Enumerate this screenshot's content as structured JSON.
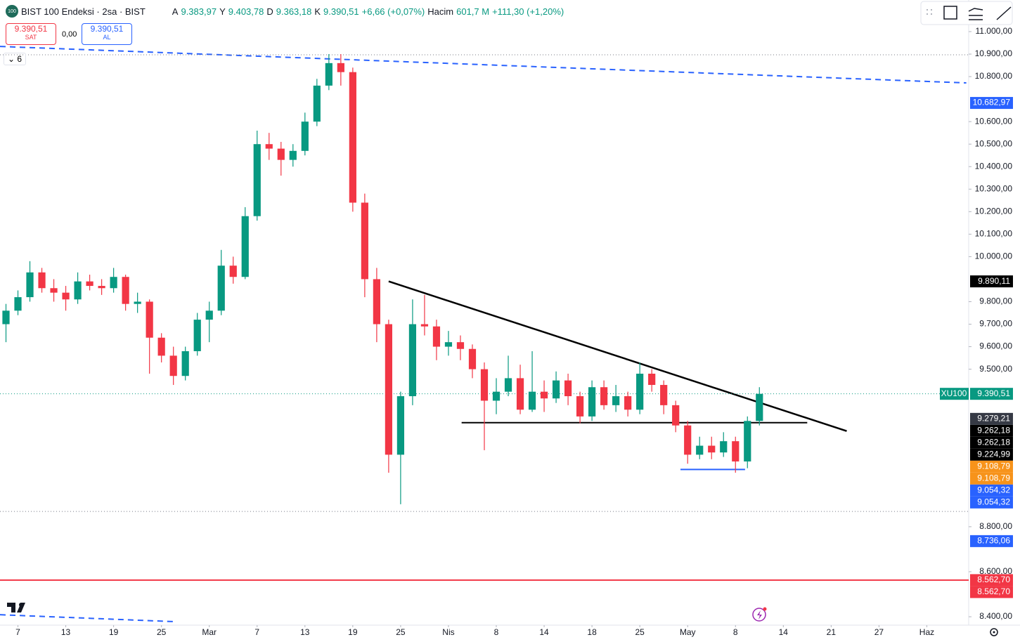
{
  "header": {
    "logo": "100",
    "symbol": "BIST 100 Endeksi · 2sa · BIST",
    "open_label": "A",
    "open": "9.383,97",
    "high_label": "Y",
    "high": "9.403,78",
    "low_label": "D",
    "low": "9.363,18",
    "close_label": "K",
    "close": "9.390,51",
    "change": "+6,66 (+0,07%)",
    "volume_label": "Hacim",
    "volume": "601,7 M",
    "volume_change": "+111,30 (+1,20%)"
  },
  "trade": {
    "sell_price": "9.390,51",
    "sell": "SAT",
    "spread": "0,00",
    "buy_price": "9.390,51",
    "buy": "AL",
    "indicators": "6"
  },
  "chart_data": {
    "type": "candlestick",
    "up_color": "#089981",
    "down_color": "#f23645",
    "grid": false,
    "xlim": [
      -1.5,
      79.5
    ],
    "ylim": [
      8362.7,
      11140.4
    ],
    "xticks": [
      {
        "value": 0,
        "label": "7"
      },
      {
        "value": 4,
        "label": "13"
      },
      {
        "value": 8,
        "label": "19"
      },
      {
        "value": 12,
        "label": "25"
      },
      {
        "value": 16,
        "label": "Mar"
      },
      {
        "value": 20,
        "label": "7"
      },
      {
        "value": 24,
        "label": "13"
      },
      {
        "value": 28,
        "label": "19"
      },
      {
        "value": 32,
        "label": "25"
      },
      {
        "value": 36,
        "label": "Nis"
      },
      {
        "value": 40,
        "label": "8"
      },
      {
        "value": 44,
        "label": "14"
      },
      {
        "value": 48,
        "label": "18"
      },
      {
        "value": 52,
        "label": "25"
      },
      {
        "value": 56,
        "label": "May"
      },
      {
        "value": 60,
        "label": "8"
      },
      {
        "value": 64,
        "label": "14"
      },
      {
        "value": 68,
        "label": "21"
      },
      {
        "value": 72,
        "label": "27"
      },
      {
        "value": 76,
        "label": "Haz"
      }
    ],
    "yticks": [
      {
        "value": 11000,
        "label": "11.000,00"
      },
      {
        "value": 10900,
        "label": "10.900,00"
      },
      {
        "value": 10800,
        "label": "10.800,00"
      },
      {
        "value": 10600,
        "label": "10.600,00"
      },
      {
        "value": 10500,
        "label": "10.500,00"
      },
      {
        "value": 10400,
        "label": "10.400,00"
      },
      {
        "value": 10300,
        "label": "10.300,00"
      },
      {
        "value": 10200,
        "label": "10.200,00"
      },
      {
        "value": 10100,
        "label": "10.100,00"
      },
      {
        "value": 10000,
        "label": "10.000,00"
      },
      {
        "value": 9800,
        "label": "9.800,00"
      },
      {
        "value": 9700,
        "label": "9.700,00"
      },
      {
        "value": 9600,
        "label": "9.600,00"
      },
      {
        "value": 9500,
        "label": "9.500,00"
      },
      {
        "value": 8800,
        "label": "8.800,00"
      },
      {
        "value": 8600,
        "label": "8.600,00"
      },
      {
        "value": 8400,
        "label": "8.400,00"
      }
    ],
    "x": [
      -1,
      0,
      1,
      2,
      3,
      4,
      5,
      6,
      7,
      8,
      9,
      10,
      11,
      12,
      13,
      14,
      15,
      16,
      17,
      18,
      19,
      20,
      21,
      22,
      23,
      24,
      25,
      26,
      27,
      28,
      29,
      30,
      31,
      32,
      33,
      34,
      35,
      36,
      37,
      38,
      39,
      40,
      41,
      42,
      43,
      44,
      45,
      46,
      47,
      48,
      49,
      50,
      51,
      52,
      53,
      54,
      55,
      56,
      57,
      58,
      59,
      60,
      61,
      62
    ],
    "open": [
      9700,
      9760,
      9820,
      9930,
      9860,
      9840,
      9810,
      9890,
      9870,
      9860,
      9910,
      9790,
      9800,
      9640,
      9560,
      9470,
      9580,
      9720,
      9760,
      9960,
      9910,
      10180,
      10500,
      10480,
      10430,
      10470,
      10600,
      10760,
      10860,
      10820,
      10240,
      9900,
      9700,
      9120,
      9380,
      9700,
      9690,
      9600,
      9620,
      9590,
      9500,
      9360,
      9400,
      9460,
      9320,
      9400,
      9370,
      9450,
      9380,
      9290,
      9420,
      9340,
      9380,
      9320,
      9480,
      9430,
      9340,
      9250,
      9120,
      9160,
      9130,
      9180,
      9090,
      9270
    ],
    "high": [
      9790,
      9850,
      9980,
      9950,
      9900,
      9870,
      9930,
      9920,
      9900,
      9950,
      9920,
      9840,
      9810,
      9660,
      9600,
      9600,
      9750,
      9800,
      10030,
      10000,
      10220,
      10560,
      10550,
      10510,
      10500,
      10640,
      10790,
      10900,
      10900,
      10840,
      10280,
      9950,
      9720,
      9400,
      9810,
      9830,
      9720,
      9670,
      9650,
      9610,
      9530,
      9460,
      9560,
      9520,
      9580,
      9450,
      9490,
      9480,
      9400,
      9450,
      9450,
      9430,
      9400,
      9530,
      9500,
      9450,
      9360,
      9270,
      9200,
      9200,
      9220,
      9200,
      9290,
      9420
    ],
    "low": [
      9620,
      9740,
      9800,
      9840,
      9800,
      9760,
      9790,
      9850,
      9830,
      9840,
      9760,
      9750,
      9480,
      9530,
      9430,
      9450,
      9560,
      9620,
      9740,
      9880,
      9900,
      10160,
      10430,
      10360,
      10400,
      10450,
      10580,
      10740,
      10760,
      10200,
      9820,
      9620,
      9040,
      8900,
      9340,
      9650,
      9540,
      9560,
      9540,
      9460,
      9140,
      9300,
      9380,
      9300,
      9310,
      9310,
      9350,
      9340,
      9260,
      9270,
      9320,
      9310,
      9290,
      9300,
      9400,
      9300,
      9220,
      9080,
      9100,
      9100,
      9110,
      9040,
      9060,
      9250
    ],
    "close": [
      9760,
      9820,
      9930,
      9860,
      9840,
      9810,
      9890,
      9870,
      9860,
      9910,
      9790,
      9800,
      9640,
      9560,
      9470,
      9580,
      9720,
      9760,
      9960,
      9910,
      10180,
      10500,
      10480,
      10430,
      10470,
      10600,
      10760,
      10860,
      10820,
      10240,
      9900,
      9700,
      9120,
      9380,
      9700,
      9690,
      9600,
      9620,
      9590,
      9500,
      9360,
      9400,
      9460,
      9320,
      9400,
      9370,
      9450,
      9380,
      9290,
      9420,
      9340,
      9380,
      9320,
      9480,
      9430,
      9340,
      9250,
      9120,
      9160,
      9130,
      9180,
      9090,
      9270,
      9390.51
    ],
    "last_price": {
      "symbol": "XU100",
      "value": 9390.51,
      "label": "9.390,51",
      "color": "#089981"
    },
    "price_labels": [
      {
        "value": 10682.97,
        "label": "10.682,97",
        "color": "#2962ff"
      },
      {
        "value": 9890.11,
        "label": "9.890,11",
        "color": "#000000"
      },
      {
        "value": 9279.21,
        "label": "9.279,21",
        "color": "#363a45"
      },
      {
        "value": 9262.18,
        "label": "9.262,18",
        "color": "#000000"
      },
      {
        "value": 9262.18,
        "label": "9.262,18",
        "color": "#000000"
      },
      {
        "value": 9224.99,
        "label": "9.224,99",
        "color": "#000000"
      },
      {
        "value": 9108.79,
        "label": "9.108,79",
        "color": "#f7931a"
      },
      {
        "value": 9108.79,
        "label": "9.108,79",
        "color": "#f7931a"
      },
      {
        "value": 9054.32,
        "label": "9.054,32",
        "color": "#2962ff"
      },
      {
        "value": 9054.32,
        "label": "9.054,32",
        "color": "#2962ff"
      },
      {
        "value": 8736.06,
        "label": "8.736,06",
        "color": "#2962ff"
      },
      {
        "value": 8562.7,
        "label": "8.562,70",
        "color": "#f23645"
      },
      {
        "value": 8562.7,
        "label": "8.562,70",
        "color": "#f23645"
      }
    ],
    "drawings": [
      {
        "x": [
          31,
          69.3
        ],
        "y": [
          9890.11,
          9224.99
        ],
        "color": "#000000",
        "width": 2.5,
        "dash": "none"
      },
      {
        "x": [
          37.1,
          66
        ],
        "y": [
          9262.18,
          9262.18
        ],
        "color": "#000000",
        "width": 2,
        "dash": "none"
      },
      {
        "x": [
          55.4,
          60.8
        ],
        "y": [
          9054.32,
          9054.32
        ],
        "color": "#2962ff",
        "width": 2,
        "dash": "none"
      },
      {
        "x": [
          -1.5,
          79.5
        ],
        "y": [
          8562.7,
          8562.7
        ],
        "color": "#f23645",
        "width": 2,
        "dash": "none"
      },
      {
        "x": [
          -1.5,
          79.3
        ],
        "y": [
          10934,
          10772
        ],
        "color": "#2962ff",
        "width": 2,
        "dash": "8 6"
      },
      {
        "x": [
          -1.5,
          13.2
        ],
        "y": [
          8409,
          8378
        ],
        "color": "#2962ff",
        "width": 2,
        "dash": "8 6"
      },
      {
        "x": [
          -1.5,
          79.5
        ],
        "y": [
          10897,
          10897
        ],
        "color": "#787b86",
        "width": 1,
        "dash": "1 3"
      },
      {
        "x": [
          -1.5,
          79.5
        ],
        "y": [
          8868,
          8868
        ],
        "color": "#787b86",
        "width": 1,
        "dash": "1 3"
      }
    ]
  }
}
